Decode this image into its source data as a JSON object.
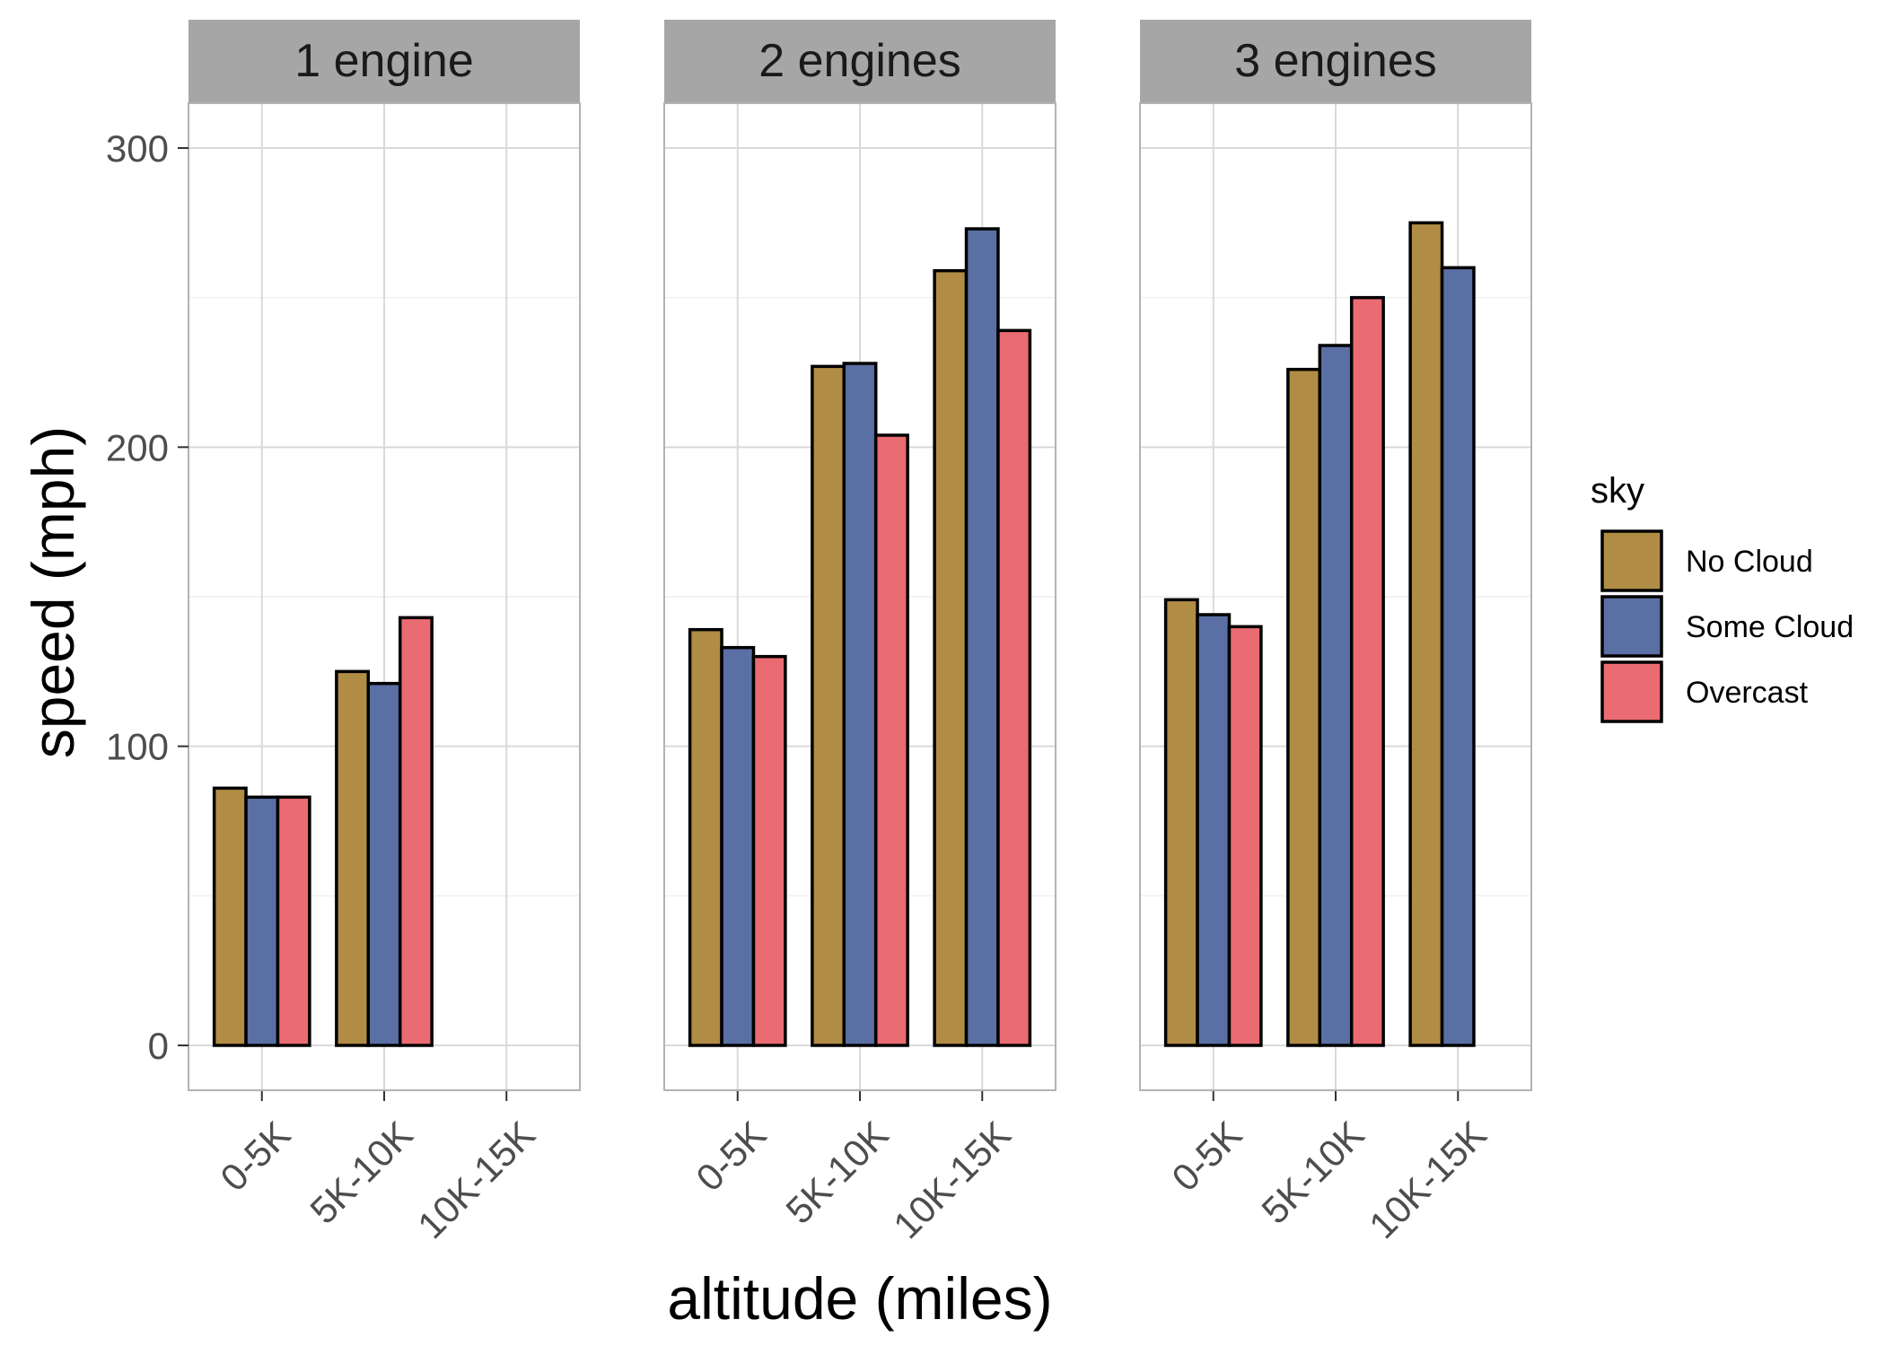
{
  "chart_data": {
    "type": "bar",
    "facet_by": "engines",
    "xlabel": "altitude (miles)",
    "ylabel": "speed (mph)",
    "ylim": [
      -15,
      315
    ],
    "y_ticks": [
      0,
      100,
      200,
      300
    ],
    "categories": [
      "0-5K",
      "5K-10K",
      "10K-15K"
    ],
    "legend": {
      "title": "sky",
      "position": "right",
      "entries": [
        {
          "name": "No Cloud",
          "color": "#b08c45"
        },
        {
          "name": "Some Cloud",
          "color": "#5a6fa3"
        },
        {
          "name": "Overcast",
          "color": "#ea6b72"
        }
      ]
    },
    "facets": [
      {
        "label": "1 engine",
        "series": [
          {
            "name": "No Cloud",
            "values": [
              86,
              125,
              null
            ]
          },
          {
            "name": "Some Cloud",
            "values": [
              83,
              121,
              null
            ]
          },
          {
            "name": "Overcast",
            "values": [
              83,
              143,
              null
            ]
          }
        ]
      },
      {
        "label": "2 engines",
        "series": [
          {
            "name": "No Cloud",
            "values": [
              139,
              227,
              259
            ]
          },
          {
            "name": "Some Cloud",
            "values": [
              133,
              228,
              273
            ]
          },
          {
            "name": "Overcast",
            "values": [
              130,
              204,
              239
            ]
          }
        ]
      },
      {
        "label": "3 engines",
        "series": [
          {
            "name": "No Cloud",
            "values": [
              149,
              226,
              275
            ]
          },
          {
            "name": "Some Cloud",
            "values": [
              144,
              234,
              260
            ]
          },
          {
            "name": "Overcast",
            "values": [
              140,
              250,
              null
            ]
          }
        ]
      }
    ]
  }
}
